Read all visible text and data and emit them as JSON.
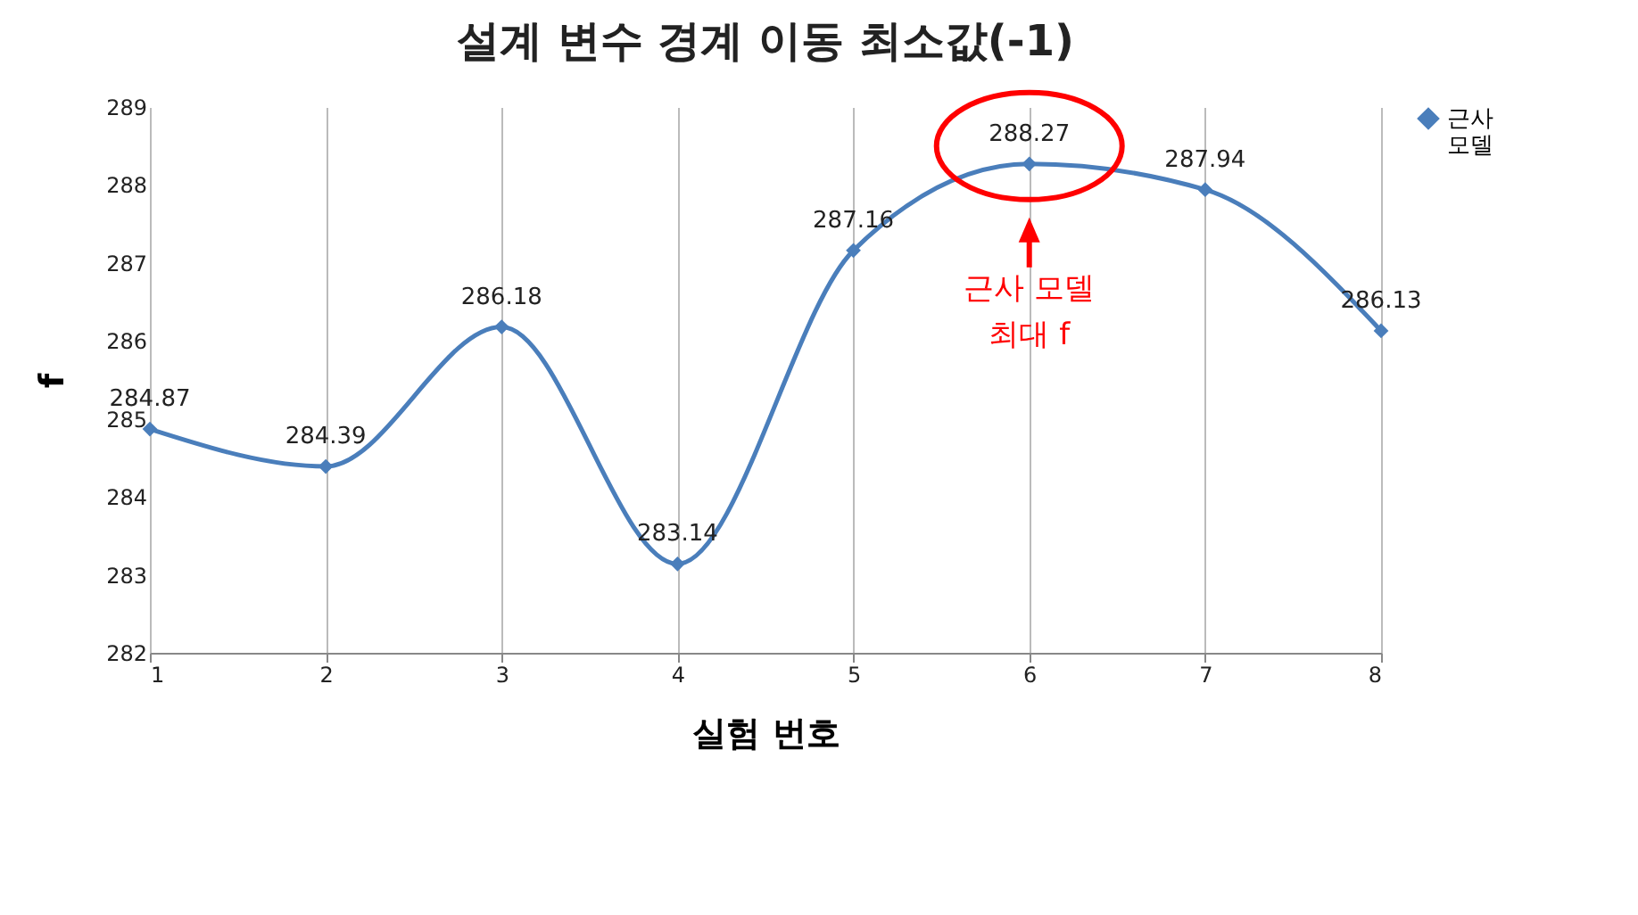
{
  "chart_data": {
    "type": "line",
    "title": "설계 변수 경계 이동 최소값(-1)",
    "xlabel": "실험 번호",
    "ylabel": "f",
    "x": [
      1,
      2,
      3,
      4,
      5,
      6,
      7,
      8
    ],
    "series": [
      {
        "name": "근사 모델",
        "color": "#4a7ebb",
        "values": [
          284.87,
          284.39,
          286.18,
          283.14,
          287.16,
          288.27,
          287.94,
          286.13
        ]
      }
    ],
    "xlim": [
      1,
      8
    ],
    "xticks": [
      1,
      2,
      3,
      4,
      5,
      6,
      7,
      8
    ],
    "ylim": [
      282,
      289
    ],
    "yticks": [
      282,
      283,
      284,
      285,
      286,
      287,
      288,
      289
    ],
    "grid": "x",
    "legend": "right",
    "marker": "diamond",
    "line_style": "solid",
    "data_labels": true,
    "annotations": [
      "근사 모델\n최대 f"
    ]
  }
}
